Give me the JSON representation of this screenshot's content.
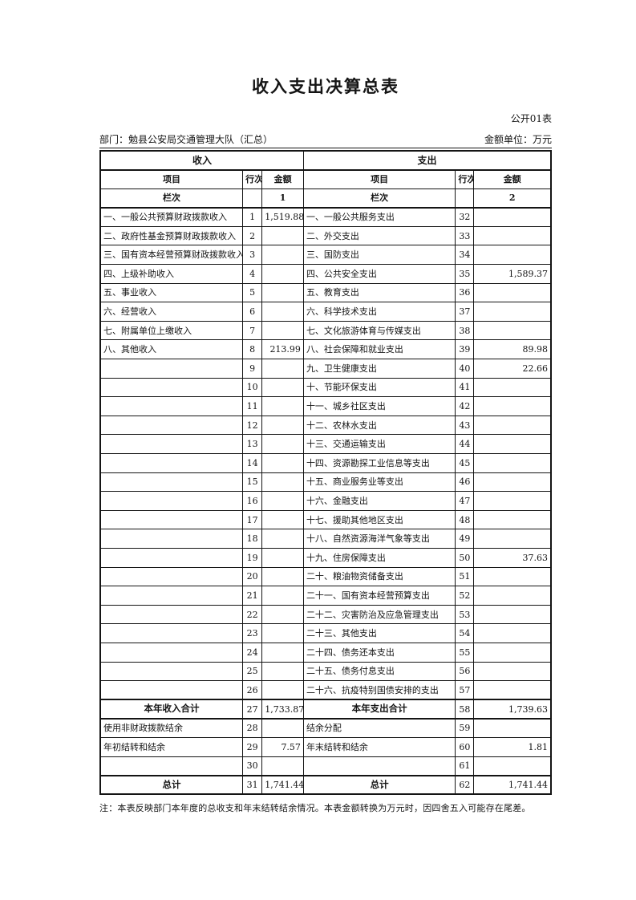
{
  "page": {
    "title": "收入支出决算总表",
    "table_code": "公开01表",
    "department": "部门：勉县公安局交通管理大队（汇总）",
    "unit": "金额单位：万元",
    "note": "注：本表反映部门本年度的总收支和年末结转结余情况。本表金额转换为万元时，因四舍五入可能存在尾差。"
  },
  "table": {
    "sections": {
      "income": "收入",
      "expenditure": "支出"
    },
    "columns": {
      "item": "项目",
      "line": "行次",
      "amount": "金额"
    },
    "lanci": {
      "label": "栏次",
      "income_col": "1",
      "expenditure_col": "2"
    },
    "rows": [
      {
        "li": "一、一般公共预算财政拨款收入",
        "ln": "1",
        "la": "1,519.88",
        "ri": "一、一般公共服务支出",
        "rn": "32",
        "ra": "",
        "type": "normal"
      },
      {
        "li": "二、政府性基金预算财政拨款收入",
        "ln": "2",
        "la": "",
        "ri": "二、外交支出",
        "rn": "33",
        "ra": "",
        "type": "normal"
      },
      {
        "li": "三、国有资本经营预算财政拨款收入",
        "ln": "3",
        "la": "",
        "ri": "三、国防支出",
        "rn": "34",
        "ra": "",
        "type": "normal"
      },
      {
        "li": "四、上级补助收入",
        "ln": "4",
        "la": "",
        "ri": "四、公共安全支出",
        "rn": "35",
        "ra": "1,589.37",
        "type": "normal"
      },
      {
        "li": "五、事业收入",
        "ln": "5",
        "la": "",
        "ri": "五、教育支出",
        "rn": "36",
        "ra": "",
        "type": "normal"
      },
      {
        "li": "六、经营收入",
        "ln": "6",
        "la": "",
        "ri": "六、科学技术支出",
        "rn": "37",
        "ra": "",
        "type": "normal"
      },
      {
        "li": "七、附属单位上缴收入",
        "ln": "7",
        "la": "",
        "ri": "七、文化旅游体育与传媒支出",
        "rn": "38",
        "ra": "",
        "type": "normal"
      },
      {
        "li": "八、其他收入",
        "ln": "8",
        "la": "213.99",
        "ri": "八、社会保障和就业支出",
        "rn": "39",
        "ra": "89.98",
        "type": "normal"
      },
      {
        "li": "",
        "ln": "9",
        "la": "",
        "ri": "九、卫生健康支出",
        "rn": "40",
        "ra": "22.66",
        "type": "normal"
      },
      {
        "li": "",
        "ln": "10",
        "la": "",
        "ri": "十、节能环保支出",
        "rn": "41",
        "ra": "",
        "type": "normal"
      },
      {
        "li": "",
        "ln": "11",
        "la": "",
        "ri": "十一、城乡社区支出",
        "rn": "42",
        "ra": "",
        "type": "normal"
      },
      {
        "li": "",
        "ln": "12",
        "la": "",
        "ri": "十二、农林水支出",
        "rn": "43",
        "ra": "",
        "type": "normal"
      },
      {
        "li": "",
        "ln": "13",
        "la": "",
        "ri": "十三、交通运输支出",
        "rn": "44",
        "ra": "",
        "type": "normal"
      },
      {
        "li": "",
        "ln": "14",
        "la": "",
        "ri": "十四、资源勘探工业信息等支出",
        "rn": "45",
        "ra": "",
        "type": "normal"
      },
      {
        "li": "",
        "ln": "15",
        "la": "",
        "ri": "十五、商业服务业等支出",
        "rn": "46",
        "ra": "",
        "type": "normal"
      },
      {
        "li": "",
        "ln": "16",
        "la": "",
        "ri": "十六、金融支出",
        "rn": "47",
        "ra": "",
        "type": "normal"
      },
      {
        "li": "",
        "ln": "17",
        "la": "",
        "ri": "十七、援助其他地区支出",
        "rn": "48",
        "ra": "",
        "type": "normal"
      },
      {
        "li": "",
        "ln": "18",
        "la": "",
        "ri": "十八、自然资源海洋气象等支出",
        "rn": "49",
        "ra": "",
        "type": "normal"
      },
      {
        "li": "",
        "ln": "19",
        "la": "",
        "ri": "十九、住房保障支出",
        "rn": "50",
        "ra": "37.63",
        "type": "normal"
      },
      {
        "li": "",
        "ln": "20",
        "la": "",
        "ri": "二十、粮油物资储备支出",
        "rn": "51",
        "ra": "",
        "type": "normal"
      },
      {
        "li": "",
        "ln": "21",
        "la": "",
        "ri": "二十一、国有资本经营预算支出",
        "rn": "52",
        "ra": "",
        "type": "normal"
      },
      {
        "li": "",
        "ln": "22",
        "la": "",
        "ri": "二十二、灾害防治及应急管理支出",
        "rn": "53",
        "ra": "",
        "type": "normal"
      },
      {
        "li": "",
        "ln": "23",
        "la": "",
        "ri": "二十三、其他支出",
        "rn": "54",
        "ra": "",
        "type": "normal"
      },
      {
        "li": "",
        "ln": "24",
        "la": "",
        "ri": "二十四、债务还本支出",
        "rn": "55",
        "ra": "",
        "type": "normal"
      },
      {
        "li": "",
        "ln": "25",
        "la": "",
        "ri": "二十五、债务付息支出",
        "rn": "56",
        "ra": "",
        "type": "normal"
      },
      {
        "li": "",
        "ln": "26",
        "la": "",
        "ri": "二十六、抗疫特别国债安排的支出",
        "rn": "57",
        "ra": "",
        "type": "normal"
      },
      {
        "li": "本年收入合计",
        "ln": "27",
        "la": "1,733.87",
        "ri": "本年支出合计",
        "rn": "58",
        "ra": "1,739.63",
        "type": "total"
      },
      {
        "li": "使用非财政拨款结余",
        "ln": "28",
        "la": "",
        "ri": "结余分配",
        "rn": "59",
        "ra": "",
        "type": "normal"
      },
      {
        "li": "年初结转和结余",
        "ln": "29",
        "la": "7.57",
        "ri": "年末结转和结余",
        "rn": "60",
        "ra": "1.81",
        "type": "normal"
      },
      {
        "li": "",
        "ln": "30",
        "la": "",
        "ri": "",
        "rn": "61",
        "ra": "",
        "type": "normal"
      },
      {
        "li": "总计",
        "ln": "31",
        "la": "1,741.44",
        "ri": "总计",
        "rn": "62",
        "ra": "1,741.44",
        "type": "grand"
      }
    ]
  }
}
